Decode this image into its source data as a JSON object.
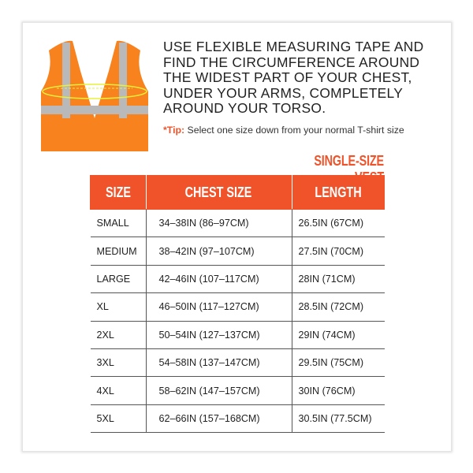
{
  "instructions": "USE FLEXIBLE MEASURING TAPE AND FIND THE CIRCUMFERENCE AROUND THE WIDEST PART OF YOUR CHEST, UNDER YOUR ARMS, COMPLETELY AROUND YOUR TORSO.",
  "tip": {
    "label": "*Tip:",
    "text": " Select one size down from your normal T-shirt size"
  },
  "table_title": "SINGLE-SIZE VEST",
  "headers": [
    "SIZE",
    "CHEST SIZE",
    "LENGTH"
  ],
  "rows": [
    [
      "SMALL",
      "34–38IN (86–97CM)",
      "26.5IN (67CM)"
    ],
    [
      "MEDIUM",
      "38–42IN (97–107CM)",
      "27.5IN (70CM)"
    ],
    [
      "LARGE",
      "42–46IN (107–117CM)",
      "28IN (71CM)"
    ],
    [
      "XL",
      "46–50IN (117–127CM)",
      "28.5IN (72CM)"
    ],
    [
      "2XL",
      "50–54IN (127–137CM)",
      "29IN (74CM)"
    ],
    [
      "3XL",
      "54–58IN (137–147CM)",
      "29.5IN (75CM)"
    ],
    [
      "4XL",
      "58–62IN (147–157CM)",
      "30IN (76CM)"
    ],
    [
      "5XL",
      "62–66IN (157–168CM)",
      "30.5IN (77.5CM)"
    ]
  ],
  "colors": {
    "accent": "#f0532a",
    "vest": "#f7821e",
    "reflective": "#b9b9b9",
    "tape": "#e8f03a"
  }
}
